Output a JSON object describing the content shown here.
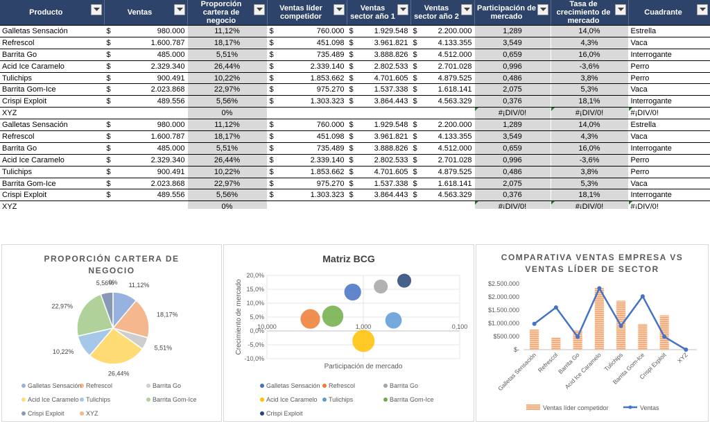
{
  "headers": [
    "Producto",
    "Ventas",
    "Proporción cartera de negocio",
    "Ventas líder competidor",
    "Ventas sector año 1",
    "Ventas sector año 2",
    "Participación de mercado",
    "Tasa de crecimiento de mercado",
    "Cuadrante"
  ],
  "currency_symbol": "$",
  "rows": [
    {
      "producto": "Galletas Sensación",
      "ventas": "980.000",
      "proporcion": "11,12%",
      "lider": "760.000",
      "sector1": "1.929.548",
      "sector2": "2.200.000",
      "participacion": "1,289",
      "tasa": "14,0%",
      "cuadrante": "Estrella"
    },
    {
      "producto": "Refrescol",
      "ventas": "1.600.787",
      "proporcion": "18,17%",
      "lider": "451.098",
      "sector1": "3.961.821",
      "sector2": "4.133.355",
      "participacion": "3,549",
      "tasa": "4,3%",
      "cuadrante": "Vaca"
    },
    {
      "producto": "Barrita Go",
      "ventas": "485.000",
      "proporcion": "5,51%",
      "lider": "735.489",
      "sector1": "3.888.826",
      "sector2": "4.512.000",
      "participacion": "0,659",
      "tasa": "16,0%",
      "cuadrante": "Interrogante"
    },
    {
      "producto": "Acid Ice Caramelo",
      "ventas": "2.329.340",
      "proporcion": "26,44%",
      "lider": "2.339.140",
      "sector1": "2.802.533",
      "sector2": "2.701.028",
      "participacion": "0,996",
      "tasa": "-3,6%",
      "cuadrante": "Perro"
    },
    {
      "producto": "Tulichips",
      "ventas": "900.491",
      "proporcion": "10,22%",
      "lider": "1.853.662",
      "sector1": "4.701.605",
      "sector2": "4.879.525",
      "participacion": "0,486",
      "tasa": "3,8%",
      "cuadrante": "Perro"
    },
    {
      "producto": "Barrita Gom-Ice",
      "ventas": "2.023.868",
      "proporcion": "22,97%",
      "lider": "975.270",
      "sector1": "1.537.338",
      "sector2": "1.618.141",
      "participacion": "2,075",
      "tasa": "5,3%",
      "cuadrante": "Vaca"
    },
    {
      "producto": "Crispi Exploit",
      "ventas": "489.556",
      "proporcion": "5,56%",
      "lider": "1.303.323",
      "sector1": "3.864.443",
      "sector2": "4.563.329",
      "participacion": "0,376",
      "tasa": "18,1%",
      "cuadrante": "Interrogante"
    },
    {
      "producto": "XYZ",
      "ventas": "",
      "proporcion": "0%",
      "lider": "",
      "sector1": "",
      "sector2": "",
      "participacion": "#¡DIV/0!",
      "tasa": "#¡DIV/0!",
      "cuadrante": "#¡DIV/0!",
      "error": true
    },
    {
      "producto": "Galletas Sensación",
      "ventas": "980.000",
      "proporcion": "11,12%",
      "lider": "760.000",
      "sector1": "1.929.548",
      "sector2": "2.200.000",
      "participacion": "1,289",
      "tasa": "14,0%",
      "cuadrante": "Estrella"
    },
    {
      "producto": "Refrescol",
      "ventas": "1.600.787",
      "proporcion": "18,17%",
      "lider": "451.098",
      "sector1": "3.961.821",
      "sector2": "4.133.355",
      "participacion": "3,549",
      "tasa": "4,3%",
      "cuadrante": "Vaca"
    },
    {
      "producto": "Barrita Go",
      "ventas": "485.000",
      "proporcion": "5,51%",
      "lider": "735.489",
      "sector1": "3.888.826",
      "sector2": "4.512.000",
      "participacion": "0,659",
      "tasa": "16,0%",
      "cuadrante": "Interrogante"
    },
    {
      "producto": "Acid Ice Caramelo",
      "ventas": "2.329.340",
      "proporcion": "26,44%",
      "lider": "2.339.140",
      "sector1": "2.802.533",
      "sector2": "2.701.028",
      "participacion": "0,996",
      "tasa": "-3,6%",
      "cuadrante": "Perro"
    },
    {
      "producto": "Tulichips",
      "ventas": "900.491",
      "proporcion": "10,22%",
      "lider": "1.853.662",
      "sector1": "4.701.605",
      "sector2": "4.879.525",
      "participacion": "0,486",
      "tasa": "3,8%",
      "cuadrante": "Perro"
    },
    {
      "producto": "Barrita Gom-Ice",
      "ventas": "2.023.868",
      "proporcion": "22,97%",
      "lider": "975.270",
      "sector1": "1.537.338",
      "sector2": "1.618.141",
      "participacion": "2,075",
      "tasa": "5,3%",
      "cuadrante": "Vaca"
    },
    {
      "producto": "Crispi Exploit",
      "ventas": "489.556",
      "proporcion": "5,56%",
      "lider": "1.303.323",
      "sector1": "3.864.443",
      "sector2": "4.563.329",
      "participacion": "0,376",
      "tasa": "18,1%",
      "cuadrante": "Interrogante"
    },
    {
      "producto": "XYZ",
      "ventas": "",
      "proporcion": "0%",
      "lider": "",
      "sector1": "",
      "sector2": "",
      "participacion": "#¡DIV/0!",
      "tasa": "#¡DIV/0!",
      "cuadrante": "#¡DIV/0!",
      "error": true
    }
  ],
  "colors": {
    "header_bg": "#2e4369",
    "Galletas Sensación": "#4472c4",
    "Refrescol": "#ed7d31",
    "Barrita Go": "#a5a5a5",
    "Acid Ice Caramelo": "#ffc000",
    "Tulichips": "#5b9bd5",
    "Barrita Gom-Ice": "#70ad47",
    "Crispi Exploit": "#264478",
    "XYZ": "#ed7d31"
  },
  "chart_data": [
    {
      "type": "pie",
      "title": "PROPORCIÓN CARTERA DE NEGOCIO",
      "labels": [
        "Galletas Sensación",
        "Refrescol",
        "Barrita Go",
        "Acid Ice Caramelo",
        "Tulichips",
        "Barrita Gom-Ice",
        "Crispi Exploit",
        "XYZ"
      ],
      "values": [
        11.12,
        18.17,
        5.51,
        26.44,
        10.22,
        22.97,
        5.56,
        0
      ],
      "data_labels": [
        "11,12%",
        "18,17%",
        "5,51%",
        "26,44%",
        "10,22%",
        "22,97%",
        "5,56%",
        "0%"
      ],
      "legend": "bottom"
    },
    {
      "type": "scatter",
      "title": "Matriz BCG",
      "xlabel": "Participación de mercado",
      "ylabel": "Crecimiento de mercado",
      "x_scale": "log-reversed",
      "xlim": [
        10,
        0.1
      ],
      "x_ticks": [
        "10,000",
        "1,000",
        "0,100"
      ],
      "ylim": [
        -10,
        20
      ],
      "y_ticks": [
        "20,0%",
        "15,0%",
        "10,0%",
        "5,0%",
        "0,0%",
        "-5,0%",
        "-10,0%"
      ],
      "points": [
        {
          "name": "Galletas Sensación",
          "x": 1.289,
          "y": 14.0,
          "size": 980000
        },
        {
          "name": "Refrescol",
          "x": 3.549,
          "y": 4.3,
          "size": 1600787
        },
        {
          "name": "Barrita Go",
          "x": 0.659,
          "y": 16.0,
          "size": 485000
        },
        {
          "name": "Acid Ice Caramelo",
          "x": 0.996,
          "y": -3.6,
          "size": 2329340
        },
        {
          "name": "Tulichips",
          "x": 0.486,
          "y": 3.8,
          "size": 900491
        },
        {
          "name": "Barrita Gom-Ice",
          "x": 2.075,
          "y": 5.3,
          "size": 2023868
        },
        {
          "name": "Crispi Exploit",
          "x": 0.376,
          "y": 18.1,
          "size": 489556
        }
      ],
      "legend": "bottom"
    },
    {
      "type": "bar",
      "title": "COMPARATIVA VENTAS EMPRESA VS VENTAS LÍDER DE SECTOR",
      "categories": [
        "Galletas Sensación",
        "Refrescol",
        "Barrita Go",
        "Acid Ice Caramelo",
        "Tulichips",
        "Barrita Gom-Ice",
        "Crispi Exploit",
        "XYZ"
      ],
      "series": [
        {
          "name": "Ventas líder competidor",
          "type": "bar",
          "values": [
            760000,
            451098,
            735489,
            2339140,
            1853662,
            975270,
            1303323,
            0
          ]
        },
        {
          "name": "Ventas",
          "type": "line",
          "values": [
            980000,
            1600787,
            485000,
            2329340,
            900491,
            2023868,
            489556,
            0
          ]
        }
      ],
      "ylim": [
        0,
        2500000
      ],
      "y_ticks": [
        "$2.500.000",
        "$2.000.000",
        "$1.500.000",
        "$1.000.000",
        "$500.000",
        "$-"
      ],
      "legend": "bottom"
    }
  ]
}
